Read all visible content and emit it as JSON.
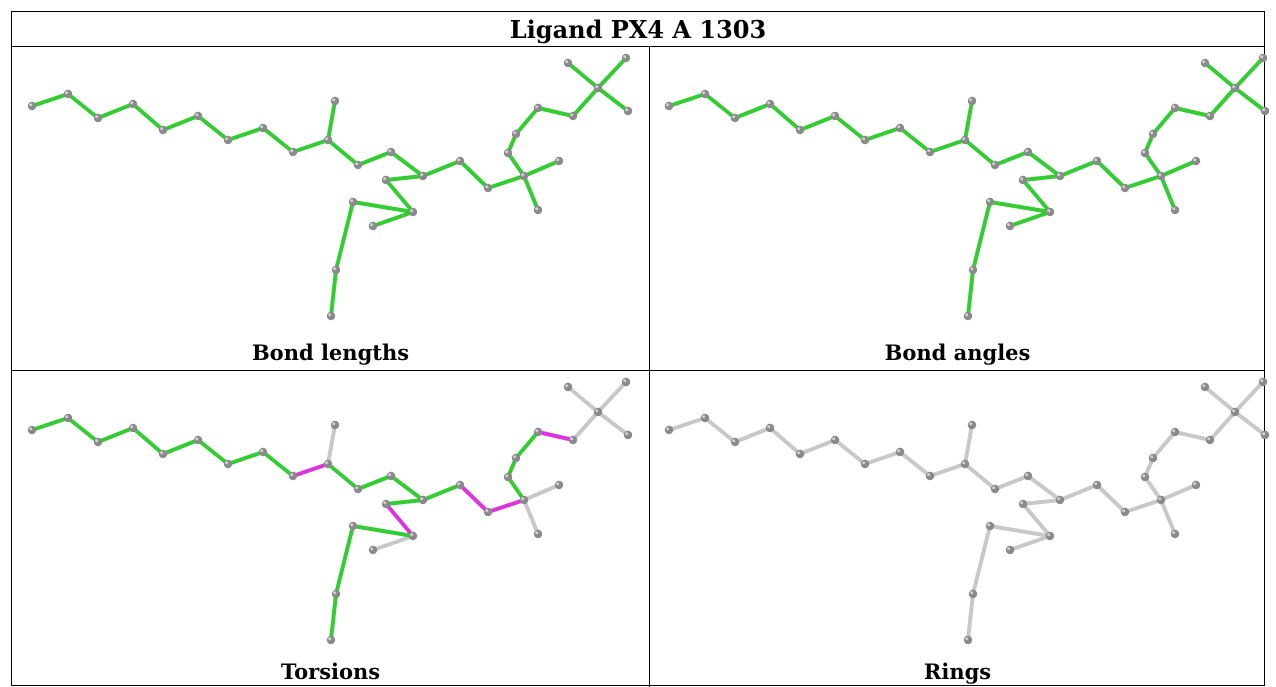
{
  "title": "Ligand PX4 A 1303",
  "panels": [
    {
      "caption": "Bond lengths",
      "scheme": "lengths"
    },
    {
      "caption": "Bond angles",
      "scheme": "angles"
    },
    {
      "caption": "Torsions",
      "scheme": "torsions"
    },
    {
      "caption": "Rings",
      "scheme": "rings"
    }
  ],
  "colors": {
    "bond_ok": "#33cc33",
    "bond_outlier": "#dd33dd",
    "bond_neutral": "#c8c8c8",
    "atom": "#8a8a8a",
    "atom_highlight": "#d0d0d0"
  }
}
